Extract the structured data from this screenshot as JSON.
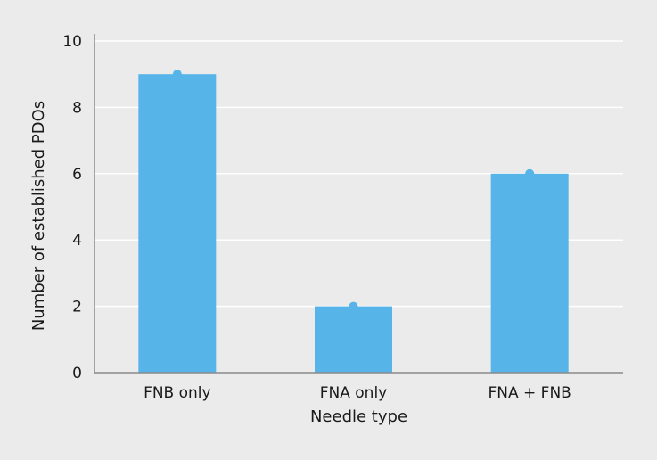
{
  "chart_data": {
    "type": "bar",
    "title": "",
    "xlabel": "Needle type",
    "ylabel": "Number of established PDOs",
    "categories": [
      "FNB only",
      "FNA only",
      "FNA + FNB"
    ],
    "values": [
      9,
      2,
      6
    ],
    "ylim": [
      0,
      10
    ],
    "yticks": [
      "0",
      "2",
      "4",
      "6",
      "8",
      "10"
    ],
    "grid": true,
    "legend": "none",
    "colors": {
      "bar": "#56b4e9",
      "background": "#ebebeb",
      "grid": "#ffffff",
      "axis": "#8a8a8a"
    }
  }
}
